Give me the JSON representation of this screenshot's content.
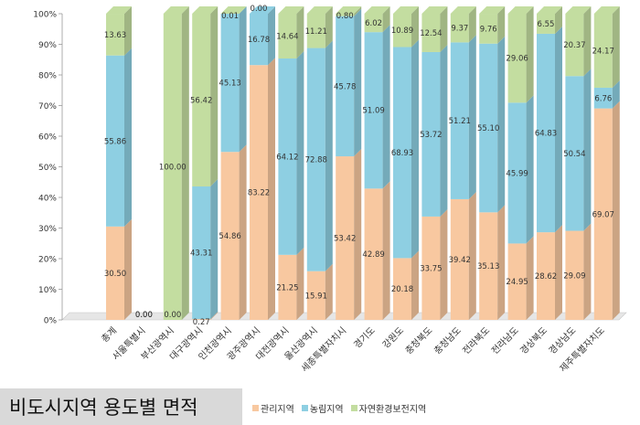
{
  "chart_data": {
    "type": "bar",
    "stacked": true,
    "title": "비도시지역 용도별 면적",
    "ylim": [
      0,
      100
    ],
    "yticks": [
      "0%",
      "10%",
      "20%",
      "30%",
      "40%",
      "50%",
      "60%",
      "70%",
      "80%",
      "90%",
      "100%"
    ],
    "categories": [
      "총계",
      "서울특별시",
      "부산광역시",
      "대구광역시",
      "인천광역시",
      "광주광역시",
      "대전광역시",
      "울산광역시",
      "세종특별자치시",
      "경기도",
      "강원도",
      "충청북도",
      "충청남도",
      "전라북도",
      "전라남도",
      "경상북도",
      "경상남도",
      "제주특별자치도"
    ],
    "series": [
      {
        "name": "관리지역",
        "color": "#f8c8a0",
        "values": [
          30.5,
          0.0,
          0.0,
          0.27,
          54.86,
          83.22,
          21.25,
          15.91,
          53.42,
          42.89,
          20.18,
          33.75,
          39.42,
          35.13,
          24.95,
          28.62,
          29.09,
          69.07
        ],
        "labels": [
          "30.50",
          "0.00",
          "0.00",
          "0.27",
          "54.86",
          "83.22",
          "21.25",
          "15.91",
          "53.42",
          "42.89",
          "20.18",
          "33.75",
          "39.42",
          "35.13",
          "24.95",
          "28.62",
          "29.09",
          "69.07"
        ]
      },
      {
        "name": "농림지역",
        "color": "#8ecfe2",
        "values": [
          55.86,
          0.0,
          0.0,
          43.31,
          45.13,
          16.78,
          64.12,
          72.88,
          45.78,
          51.09,
          68.93,
          53.72,
          51.21,
          55.1,
          45.99,
          64.83,
          50.54,
          6.76
        ],
        "labels": [
          "55.86",
          "0.00",
          "",
          "43.31",
          "45.13",
          "16.78",
          "64.12",
          "72.88",
          "45.78",
          "51.09",
          "68.93",
          "53.72",
          "51.21",
          "55.10",
          "45.99",
          "64.83",
          "50.54",
          "6.76"
        ]
      },
      {
        "name": "자연환경보전지역",
        "color": "#c3dda0",
        "values": [
          13.63,
          0.0,
          100.0,
          56.42,
          0.01,
          0.0,
          14.64,
          11.21,
          0.8,
          6.02,
          10.89,
          12.54,
          9.37,
          9.76,
          29.06,
          6.55,
          20.37,
          24.17
        ],
        "labels": [
          "13.63",
          "",
          "100.00",
          "56.42",
          "0.01",
          "0.00",
          "14.64",
          "11.21",
          "0.80",
          "6.02",
          "10.89",
          "12.54",
          "9.37",
          "9.76",
          "29.06",
          "6.55",
          "20.37",
          "24.17"
        ]
      }
    ]
  }
}
